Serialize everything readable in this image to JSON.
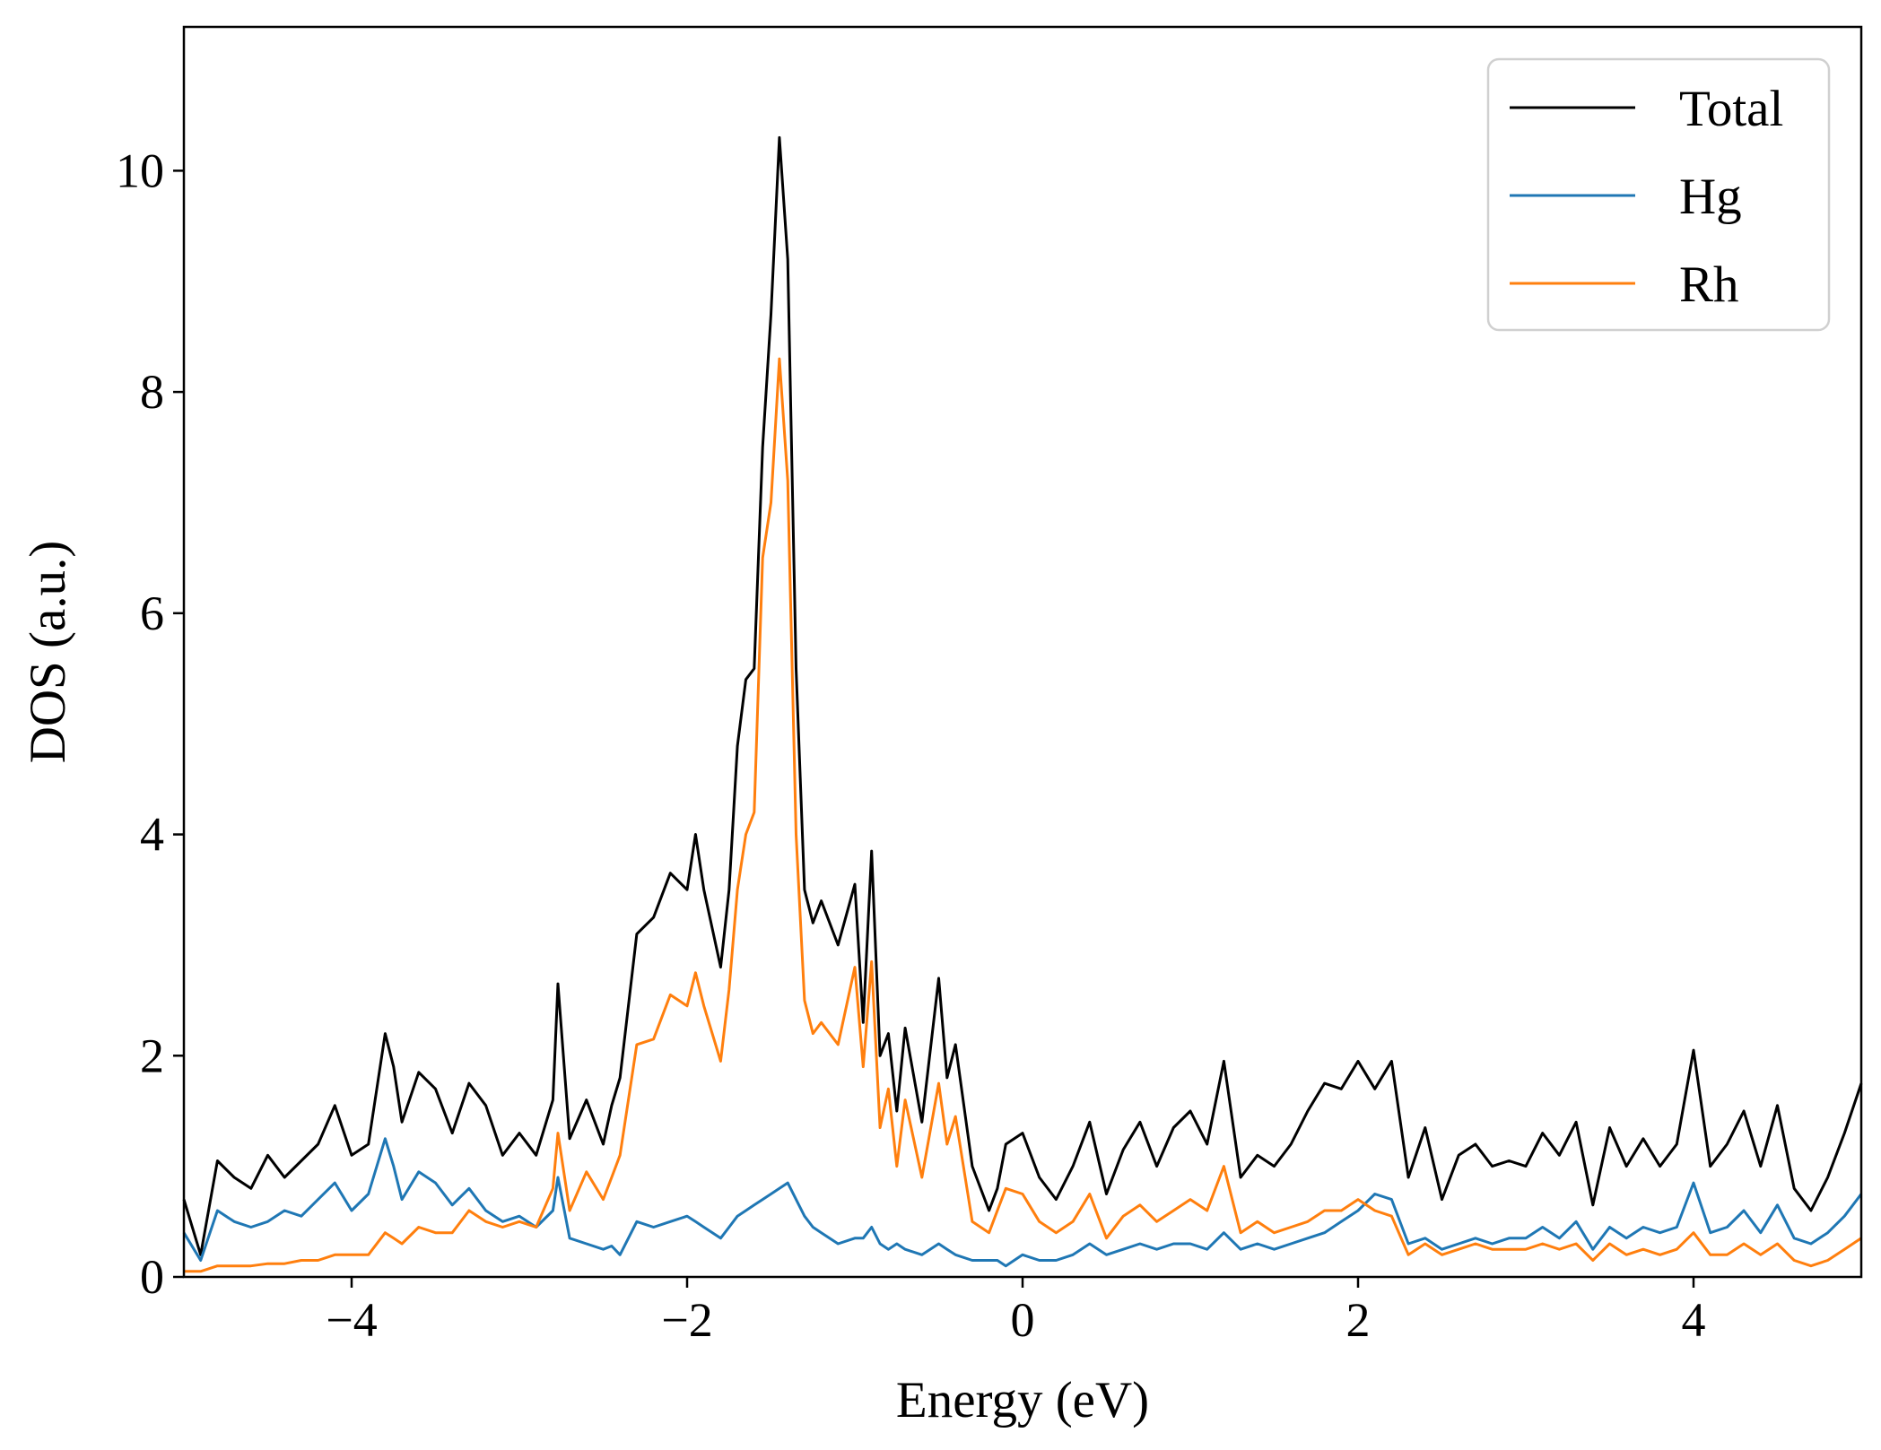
{
  "chart_data": {
    "type": "line",
    "title": "",
    "xlabel": "Energy (eV)",
    "ylabel": "DOS (a.u.)",
    "xlim": [
      -5,
      5
    ],
    "ylim": [
      0,
      11.3
    ],
    "xticks": [
      -4,
      -2,
      0,
      2,
      4
    ],
    "xtick_labels": [
      "−4",
      "−2",
      "0",
      "2",
      "4"
    ],
    "yticks": [
      0,
      2,
      4,
      6,
      8,
      10
    ],
    "ytick_labels": [
      "0",
      "2",
      "4",
      "6",
      "8",
      "10"
    ],
    "grid": false,
    "legend_position": "top-right",
    "x": [
      -5.0,
      -4.9,
      -4.8,
      -4.7,
      -4.6,
      -4.5,
      -4.4,
      -4.3,
      -4.2,
      -4.1,
      -4.0,
      -3.9,
      -3.8,
      -3.75,
      -3.7,
      -3.6,
      -3.5,
      -3.4,
      -3.3,
      -3.2,
      -3.1,
      -3.0,
      -2.9,
      -2.8,
      -2.77,
      -2.7,
      -2.6,
      -2.5,
      -2.45,
      -2.4,
      -2.3,
      -2.2,
      -2.1,
      -2.0,
      -1.95,
      -1.9,
      -1.8,
      -1.75,
      -1.7,
      -1.65,
      -1.6,
      -1.55,
      -1.5,
      -1.45,
      -1.4,
      -1.35,
      -1.3,
      -1.25,
      -1.2,
      -1.1,
      -1.0,
      -0.95,
      -0.9,
      -0.85,
      -0.8,
      -0.75,
      -0.7,
      -0.6,
      -0.5,
      -0.45,
      -0.4,
      -0.3,
      -0.2,
      -0.15,
      -0.1,
      0.0,
      0.1,
      0.2,
      0.3,
      0.4,
      0.5,
      0.6,
      0.7,
      0.8,
      0.9,
      1.0,
      1.1,
      1.2,
      1.3,
      1.4,
      1.5,
      1.6,
      1.7,
      1.8,
      1.9,
      2.0,
      2.1,
      2.2,
      2.3,
      2.4,
      2.5,
      2.6,
      2.7,
      2.8,
      2.9,
      3.0,
      3.1,
      3.2,
      3.3,
      3.4,
      3.5,
      3.6,
      3.7,
      3.8,
      3.9,
      4.0,
      4.1,
      4.2,
      4.3,
      4.4,
      4.5,
      4.6,
      4.7,
      4.8,
      4.9,
      5.0
    ],
    "series": [
      {
        "name": "Total",
        "color": "#000000",
        "values": [
          0.7,
          0.2,
          1.05,
          0.9,
          0.8,
          1.1,
          0.9,
          1.05,
          1.2,
          1.55,
          1.1,
          1.2,
          2.2,
          1.9,
          1.4,
          1.85,
          1.7,
          1.3,
          1.75,
          1.55,
          1.1,
          1.3,
          1.1,
          1.6,
          2.65,
          1.25,
          1.6,
          1.2,
          1.55,
          1.8,
          3.1,
          3.25,
          3.65,
          3.5,
          4.0,
          3.5,
          2.8,
          3.5,
          4.8,
          5.4,
          5.5,
          7.5,
          8.7,
          10.3,
          9.2,
          5.5,
          3.5,
          3.2,
          3.4,
          3.0,
          3.55,
          2.3,
          3.85,
          2.0,
          2.2,
          1.5,
          2.25,
          1.4,
          2.7,
          1.8,
          2.1,
          1.0,
          0.6,
          0.8,
          1.2,
          1.3,
          0.9,
          0.7,
          1.0,
          1.4,
          0.75,
          1.15,
          1.4,
          1.0,
          1.35,
          1.5,
          1.2,
          1.95,
          0.9,
          1.1,
          1.0,
          1.2,
          1.5,
          1.75,
          1.7,
          1.95,
          1.7,
          1.95,
          0.9,
          1.35,
          0.7,
          1.1,
          1.2,
          1.0,
          1.05,
          1.0,
          1.3,
          1.1,
          1.4,
          0.65,
          1.35,
          1.0,
          1.25,
          1.0,
          1.2,
          2.05,
          1.0,
          1.2,
          1.5,
          1.0,
          1.55,
          0.8,
          0.6,
          0.9,
          1.3,
          1.75
        ]
      },
      {
        "name": "Hg",
        "color": "#1f77b4",
        "values": [
          0.4,
          0.15,
          0.6,
          0.5,
          0.45,
          0.5,
          0.6,
          0.55,
          0.7,
          0.85,
          0.6,
          0.75,
          1.25,
          1.0,
          0.7,
          0.95,
          0.85,
          0.65,
          0.8,
          0.6,
          0.5,
          0.55,
          0.45,
          0.6,
          0.9,
          0.35,
          0.3,
          0.25,
          0.28,
          0.2,
          0.5,
          0.45,
          0.5,
          0.55,
          0.5,
          0.45,
          0.35,
          0.45,
          0.55,
          0.6,
          0.65,
          0.7,
          0.75,
          0.8,
          0.85,
          0.7,
          0.55,
          0.45,
          0.4,
          0.3,
          0.35,
          0.35,
          0.45,
          0.3,
          0.25,
          0.3,
          0.25,
          0.2,
          0.3,
          0.25,
          0.2,
          0.15,
          0.15,
          0.15,
          0.1,
          0.2,
          0.15,
          0.15,
          0.2,
          0.3,
          0.2,
          0.25,
          0.3,
          0.25,
          0.3,
          0.3,
          0.25,
          0.4,
          0.25,
          0.3,
          0.25,
          0.3,
          0.35,
          0.4,
          0.5,
          0.6,
          0.75,
          0.7,
          0.3,
          0.35,
          0.25,
          0.3,
          0.35,
          0.3,
          0.35,
          0.35,
          0.45,
          0.35,
          0.5,
          0.25,
          0.45,
          0.35,
          0.45,
          0.4,
          0.45,
          0.85,
          0.4,
          0.45,
          0.6,
          0.4,
          0.65,
          0.35,
          0.3,
          0.4,
          0.55,
          0.75
        ]
      },
      {
        "name": "Rh",
        "color": "#ff7f0e",
        "values": [
          0.05,
          0.05,
          0.1,
          0.1,
          0.1,
          0.12,
          0.12,
          0.15,
          0.15,
          0.2,
          0.2,
          0.2,
          0.4,
          0.35,
          0.3,
          0.45,
          0.4,
          0.4,
          0.6,
          0.5,
          0.45,
          0.5,
          0.45,
          0.8,
          1.3,
          0.6,
          0.95,
          0.7,
          0.9,
          1.1,
          2.1,
          2.15,
          2.55,
          2.45,
          2.75,
          2.45,
          1.95,
          2.6,
          3.5,
          4.0,
          4.2,
          6.5,
          7.0,
          8.3,
          7.2,
          4.0,
          2.5,
          2.2,
          2.3,
          2.1,
          2.8,
          1.9,
          2.85,
          1.35,
          1.7,
          1.0,
          1.6,
          0.9,
          1.75,
          1.2,
          1.45,
          0.5,
          0.4,
          0.6,
          0.8,
          0.75,
          0.5,
          0.4,
          0.5,
          0.75,
          0.35,
          0.55,
          0.65,
          0.5,
          0.6,
          0.7,
          0.6,
          1.0,
          0.4,
          0.5,
          0.4,
          0.45,
          0.5,
          0.6,
          0.6,
          0.7,
          0.6,
          0.55,
          0.2,
          0.3,
          0.2,
          0.25,
          0.3,
          0.25,
          0.25,
          0.25,
          0.3,
          0.25,
          0.3,
          0.15,
          0.3,
          0.2,
          0.25,
          0.2,
          0.25,
          0.4,
          0.2,
          0.2,
          0.3,
          0.2,
          0.3,
          0.15,
          0.1,
          0.15,
          0.25,
          0.35
        ]
      }
    ]
  }
}
